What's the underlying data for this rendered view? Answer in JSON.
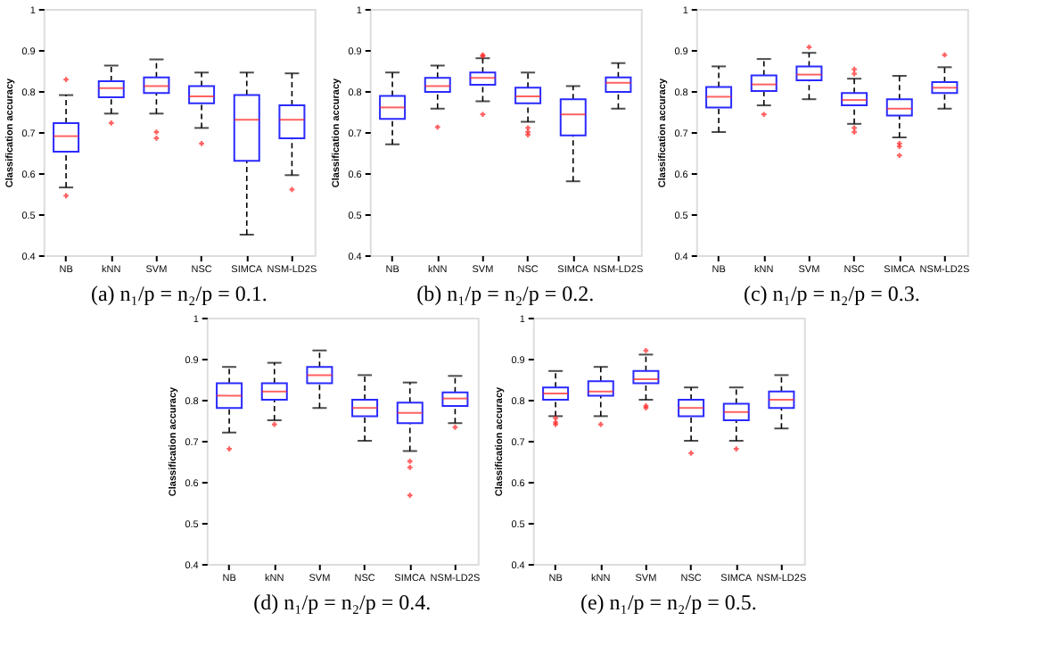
{
  "chart_data": [
    {
      "type": "box",
      "title": "(a) n₁/p = n₂/p = 0.1.",
      "ylabel": "Classification accuracy",
      "categories": [
        "NB",
        "kNN",
        "SVM",
        "NSC",
        "SIMCA",
        "NSM-LD2S"
      ],
      "ylim": [
        0.4,
        1
      ],
      "yticks": [
        0.4,
        0.5,
        0.6,
        0.7,
        0.8,
        0.9,
        1
      ],
      "grid": false,
      "boxes": [
        {
          "low": 0.565,
          "q1": 0.652,
          "median": 0.69,
          "q3": 0.722,
          "high": 0.79,
          "outliers": [
            0.828,
            0.545
          ]
        },
        {
          "low": 0.745,
          "q1": 0.785,
          "median": 0.807,
          "q3": 0.824,
          "high": 0.862,
          "outliers": [
            0.722
          ]
        },
        {
          "low": 0.745,
          "q1": 0.795,
          "median": 0.812,
          "q3": 0.833,
          "high": 0.877,
          "outliers": [
            0.7,
            0.685
          ]
        },
        {
          "low": 0.71,
          "q1": 0.77,
          "median": 0.787,
          "q3": 0.812,
          "high": 0.845,
          "outliers": [
            0.672
          ]
        },
        {
          "low": 0.45,
          "q1": 0.63,
          "median": 0.73,
          "q3": 0.79,
          "high": 0.845
        },
        {
          "low": 0.595,
          "q1": 0.685,
          "median": 0.73,
          "q3": 0.765,
          "high": 0.843,
          "outliers": [
            0.56
          ]
        }
      ]
    },
    {
      "type": "box",
      "title": "(b) n₁/p = n₂/p = 0.2.",
      "ylabel": "Classification accuracy",
      "categories": [
        "NB",
        "kNN",
        "SVM",
        "NSC",
        "SIMCA",
        "NSM-LD2S"
      ],
      "ylim": [
        0.4,
        1
      ],
      "yticks": [
        0.4,
        0.5,
        0.6,
        0.7,
        0.8,
        0.9,
        1
      ],
      "grid": false,
      "boxes": [
        {
          "low": 0.67,
          "q1": 0.732,
          "median": 0.76,
          "q3": 0.788,
          "high": 0.845
        },
        {
          "low": 0.757,
          "q1": 0.798,
          "median": 0.812,
          "q3": 0.832,
          "high": 0.862,
          "outliers": [
            0.712
          ]
        },
        {
          "low": 0.775,
          "q1": 0.815,
          "median": 0.832,
          "q3": 0.845,
          "high": 0.88,
          "outliers": [
            0.888,
            0.885,
            0.743
          ]
        },
        {
          "low": 0.725,
          "q1": 0.77,
          "median": 0.787,
          "q3": 0.808,
          "high": 0.845,
          "outliers": [
            0.71,
            0.7,
            0.693
          ]
        },
        {
          "low": 0.58,
          "q1": 0.692,
          "median": 0.743,
          "q3": 0.78,
          "high": 0.812
        },
        {
          "low": 0.757,
          "q1": 0.798,
          "median": 0.82,
          "q3": 0.833,
          "high": 0.868
        }
      ]
    },
    {
      "type": "box",
      "title": "(c) n₁/p = n₂/p = 0.3.",
      "ylabel": "Classification accuracy",
      "categories": [
        "NB",
        "kNN",
        "SVM",
        "NSC",
        "SIMCA",
        "NSM-LD2S"
      ],
      "ylim": [
        0.4,
        1
      ],
      "yticks": [
        0.4,
        0.5,
        0.6,
        0.7,
        0.8,
        0.9,
        1
      ],
      "grid": false,
      "boxes": [
        {
          "low": 0.7,
          "q1": 0.76,
          "median": 0.786,
          "q3": 0.81,
          "high": 0.86
        },
        {
          "low": 0.765,
          "q1": 0.8,
          "median": 0.816,
          "q3": 0.838,
          "high": 0.878,
          "outliers": [
            0.743
          ]
        },
        {
          "low": 0.78,
          "q1": 0.826,
          "median": 0.84,
          "q3": 0.86,
          "high": 0.893,
          "outliers": [
            0.907
          ]
        },
        {
          "low": 0.72,
          "q1": 0.765,
          "median": 0.778,
          "q3": 0.795,
          "high": 0.83,
          "outliers": [
            0.853,
            0.842,
            0.71,
            0.7
          ]
        },
        {
          "low": 0.687,
          "q1": 0.74,
          "median": 0.757,
          "q3": 0.78,
          "high": 0.837,
          "outliers": [
            0.672,
            0.665,
            0.643
          ]
        },
        {
          "low": 0.757,
          "q1": 0.795,
          "median": 0.808,
          "q3": 0.822,
          "high": 0.858,
          "outliers": [
            0.888
          ]
        }
      ]
    },
    {
      "type": "box",
      "title": "(d) n₁/p = n₂/p = 0.4.",
      "ylabel": "Classification accuracy",
      "categories": [
        "NB",
        "kNN",
        "SVM",
        "NSC",
        "SIMCA",
        "NSM-LD2S"
      ],
      "ylim": [
        0.4,
        1
      ],
      "yticks": [
        0.4,
        0.5,
        0.6,
        0.7,
        0.8,
        0.9,
        1
      ],
      "grid": false,
      "boxes": [
        {
          "low": 0.72,
          "q1": 0.78,
          "median": 0.81,
          "q3": 0.84,
          "high": 0.88,
          "outliers": [
            0.68
          ]
        },
        {
          "low": 0.75,
          "q1": 0.8,
          "median": 0.82,
          "q3": 0.84,
          "high": 0.89,
          "outliers": [
            0.74
          ]
        },
        {
          "low": 0.78,
          "q1": 0.84,
          "median": 0.86,
          "q3": 0.88,
          "high": 0.92
        },
        {
          "low": 0.7,
          "q1": 0.76,
          "median": 0.78,
          "q3": 0.8,
          "high": 0.86
        },
        {
          "low": 0.675,
          "q1": 0.743,
          "median": 0.768,
          "q3": 0.793,
          "high": 0.842,
          "outliers": [
            0.65,
            0.635,
            0.567
          ]
        },
        {
          "low": 0.743,
          "q1": 0.785,
          "median": 0.803,
          "q3": 0.818,
          "high": 0.858,
          "outliers": [
            0.733
          ]
        }
      ]
    },
    {
      "type": "box",
      "title": "(e) n₁/p = n₂/p = 0.5.",
      "ylabel": "Classification accuracy",
      "categories": [
        "NB",
        "kNN",
        "SVM",
        "NSC",
        "SIMCA",
        "NSM-LD2S"
      ],
      "ylim": [
        0.4,
        1
      ],
      "yticks": [
        0.4,
        0.5,
        0.6,
        0.7,
        0.8,
        0.9,
        1
      ],
      "grid": false,
      "boxes": [
        {
          "low": 0.76,
          "q1": 0.8,
          "median": 0.815,
          "q3": 0.83,
          "high": 0.87,
          "outliers": [
            0.755,
            0.745,
            0.74
          ]
        },
        {
          "low": 0.76,
          "q1": 0.81,
          "median": 0.82,
          "q3": 0.845,
          "high": 0.88,
          "outliers": [
            0.74
          ]
        },
        {
          "low": 0.8,
          "q1": 0.84,
          "median": 0.85,
          "q3": 0.87,
          "high": 0.91,
          "outliers": [
            0.92,
            0.785,
            0.78
          ]
        },
        {
          "low": 0.7,
          "q1": 0.76,
          "median": 0.78,
          "q3": 0.8,
          "high": 0.83,
          "outliers": [
            0.67
          ]
        },
        {
          "low": 0.7,
          "q1": 0.75,
          "median": 0.77,
          "q3": 0.79,
          "high": 0.83,
          "outliers": [
            0.68
          ]
        },
        {
          "low": 0.73,
          "q1": 0.78,
          "median": 0.8,
          "q3": 0.82,
          "high": 0.86
        }
      ]
    }
  ]
}
